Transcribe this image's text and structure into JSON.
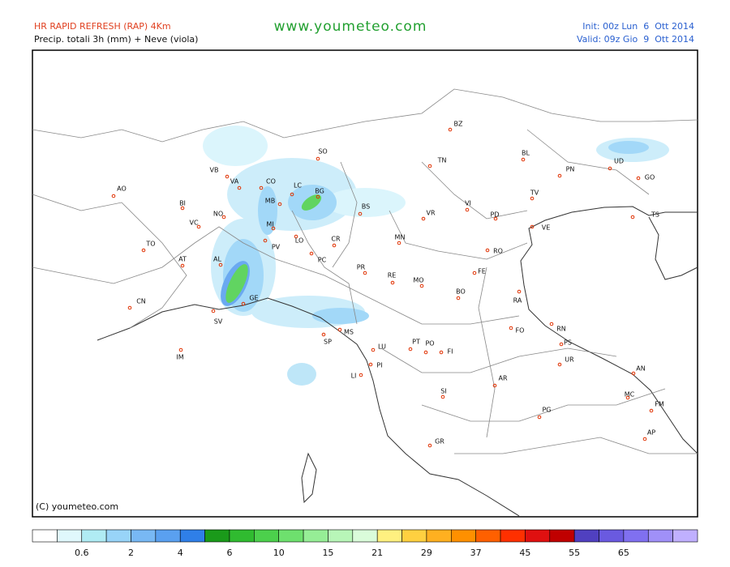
{
  "header": {
    "model": "HR RAPID REFRESH (RAP) 4Km",
    "product": "Precip. totali 3h (mm) + Neve (viola)",
    "site": "www.youmeteo.com",
    "init": "Init: 00z Lun  6  Ott 2014",
    "valid": "Valid: 09z Gio  9  Ott 2014"
  },
  "map": {
    "cities": [
      "BZ",
      "TN",
      "BL",
      "PN",
      "UD",
      "GO",
      "TS",
      "AO",
      "VB",
      "VA",
      "CO",
      "LC",
      "SO",
      "BG",
      "MB",
      "BS",
      "TV",
      "VI",
      "VR",
      "PD",
      "VE",
      "BI",
      "NO",
      "MI",
      "VC",
      "TO",
      "PV",
      "LO",
      "CR",
      "MN",
      "RO",
      "AT",
      "AL",
      "PC",
      "PR",
      "RE",
      "MO",
      "FE",
      "BO",
      "RA",
      "CN",
      "GE",
      "SV",
      "FO",
      "RN",
      "MS",
      "SP",
      "PS",
      "LU",
      "PT",
      "PO",
      "FI",
      "UR",
      "IM",
      "PI",
      "AN",
      "LI",
      "AR",
      "SI",
      "MC",
      "FM",
      "PG",
      "AP",
      "GR"
    ],
    "copyright": "(C) youmeteo.com"
  },
  "legend": {
    "colors": [
      "#ffffff",
      "#e0f8fc",
      "#b0ecf4",
      "#98d4f8",
      "#78b8f4",
      "#5aa0f0",
      "#2f7fe8",
      "#1a9a1a",
      "#30bb30",
      "#4cd04c",
      "#6ee06e",
      "#96ee96",
      "#b8f6b8",
      "#dafcda",
      "#fff080",
      "#ffd040",
      "#ffb020",
      "#ff9000",
      "#ff6000",
      "#ff3000",
      "#e01010",
      "#c00000",
      "#5040c0",
      "#6a5ae0",
      "#8070f0",
      "#a090f8",
      "#c0b0ff"
    ],
    "labels": [
      0.6,
      2,
      4,
      6,
      10,
      15,
      21,
      29,
      37,
      45,
      55,
      65
    ]
  }
}
